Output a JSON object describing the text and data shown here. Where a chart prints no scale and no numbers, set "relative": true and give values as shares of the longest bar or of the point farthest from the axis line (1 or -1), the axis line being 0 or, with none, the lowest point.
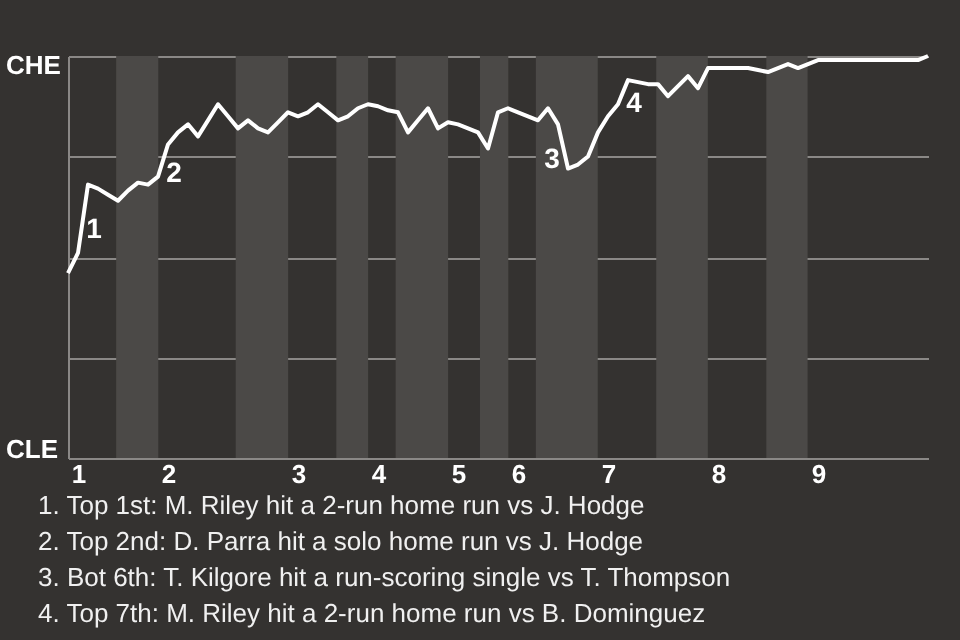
{
  "chart_data": {
    "type": "line",
    "relative": true,
    "categories": [
      null,
      "1",
      null,
      null,
      null,
      null,
      null,
      null,
      null,
      null,
      "2",
      null,
      null,
      null,
      null,
      null,
      null,
      null,
      null,
      null,
      null,
      null,
      null,
      "3",
      null,
      null,
      null,
      null,
      null,
      null,
      null,
      "4",
      null,
      null,
      null,
      null,
      null,
      null,
      null,
      "5",
      null,
      null,
      null,
      null,
      null,
      "6",
      null,
      null,
      null,
      null,
      null,
      null,
      null,
      null,
      "7",
      null,
      null,
      null,
      null,
      null,
      null,
      null,
      null,
      null,
      null,
      "8",
      null,
      null,
      null,
      null,
      null,
      null,
      null,
      null,
      null,
      "9",
      null,
      null,
      null,
      null,
      null,
      null,
      null,
      null,
      null,
      null,
      null
    ],
    "series": [
      {
        "color": "#ffffff",
        "values": [
          0.46,
          0.51,
          0.68,
          0.67,
          0.655,
          0.64,
          0.665,
          0.685,
          0.68,
          0.7,
          0.78,
          0.81,
          0.83,
          0.8,
          0.84,
          0.88,
          0.85,
          0.82,
          0.84,
          0.82,
          0.81,
          0.835,
          0.86,
          0.85,
          0.86,
          0.88,
          0.86,
          0.84,
          0.85,
          0.87,
          0.88,
          0.875,
          0.865,
          0.86,
          0.81,
          0.84,
          0.87,
          0.82,
          0.835,
          0.83,
          0.82,
          0.81,
          0.77,
          0.86,
          0.87,
          0.86,
          0.85,
          0.84,
          0.87,
          0.83,
          0.72,
          0.73,
          0.75,
          0.81,
          0.85,
          0.88,
          0.94,
          0.935,
          0.93,
          0.93,
          0.9,
          0.925,
          0.95,
          0.92,
          0.97,
          0.97,
          0.97,
          0.97,
          0.97,
          0.965,
          0.96,
          0.97,
          0.98,
          0.97,
          0.98,
          0.99,
          0.99,
          0.99,
          0.99,
          0.99,
          0.99,
          0.99,
          0.99,
          0.99,
          0.99,
          0.99,
          1.0
        ]
      }
    ],
    "grid": "y",
    "annotations": [
      "CHE",
      "CLE",
      "1",
      "2",
      "3",
      "4",
      "1. Top 1st: M. Riley hit a 2-run home run vs J. Hodge",
      "2. Top 2nd: D. Parra hit a solo home run vs J. Hodge",
      "3. Bot 6th: T. Kilgore hit a run-scoring single vs T. Thompson",
      "4. Top 7th: M. Riley hit a 2-run home run vs B. Dominguez"
    ]
  }
}
